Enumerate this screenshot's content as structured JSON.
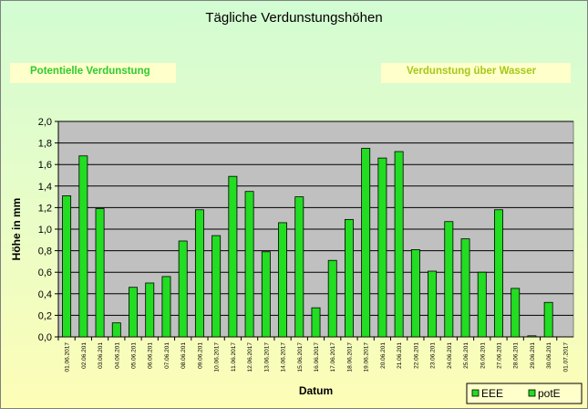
{
  "title": "Tägliche Verdunstungshöhen",
  "captions": {
    "left": "Potentielle Verdunstung",
    "right": "Verdunstung über Wasser"
  },
  "colors": {
    "bar": "#22dd22",
    "plot_bg": "#c0c0c0",
    "caption_bg": "#ffffcc",
    "left_caption": "#2ecc2e",
    "right_caption": "#a6c81a"
  },
  "chart_data": {
    "type": "bar",
    "xlabel": "Datum",
    "ylabel": "Höhe in mm",
    "ylim": [
      0,
      2.0
    ],
    "yticks": [
      "0,0",
      "0,2",
      "0,4",
      "0,6",
      "0,8",
      "1,0",
      "1,2",
      "1,4",
      "1,6",
      "1,8",
      "2,0"
    ],
    "grid": true,
    "legend_position": "bottom-right",
    "categories": [
      "01.06.2017",
      "02.06.201",
      "03.06.201",
      "04.06.201",
      "05.06.201",
      "06.06.201",
      "07.06.201",
      "08.06.201",
      "09.06.201",
      "10.06.2017",
      "11.06.2017",
      "12.06.2017",
      "13.06.2017",
      "14.06.2017",
      "15.06.2017",
      "16.06.2017",
      "17.06.2017",
      "18.06.2017",
      "19.06.2017",
      "20.06.201",
      "21.06.201",
      "22.06.201",
      "23.06.201",
      "24.06.201",
      "25.06.201",
      "26.06.201",
      "27.06.201",
      "28.06.201",
      "29.06.201",
      "30.06.201",
      "01.07.2017"
    ],
    "series": [
      {
        "name": "EEE",
        "values": [
          null,
          null,
          null,
          null,
          null,
          null,
          null,
          null,
          null,
          null,
          null,
          null,
          null,
          null,
          null,
          null,
          null,
          null,
          null,
          null,
          null,
          null,
          null,
          null,
          null,
          null,
          null,
          null,
          null,
          null,
          null
        ]
      },
      {
        "name": "potE",
        "values": [
          1.31,
          1.68,
          1.19,
          0.13,
          0.46,
          0.5,
          0.56,
          0.89,
          1.18,
          0.94,
          1.49,
          1.35,
          0.79,
          1.06,
          1.3,
          0.27,
          0.71,
          1.09,
          1.75,
          1.66,
          1.72,
          0.81,
          0.61,
          1.07,
          0.91,
          0.6,
          1.18,
          0.45,
          0.01,
          0.32,
          null
        ]
      }
    ]
  }
}
